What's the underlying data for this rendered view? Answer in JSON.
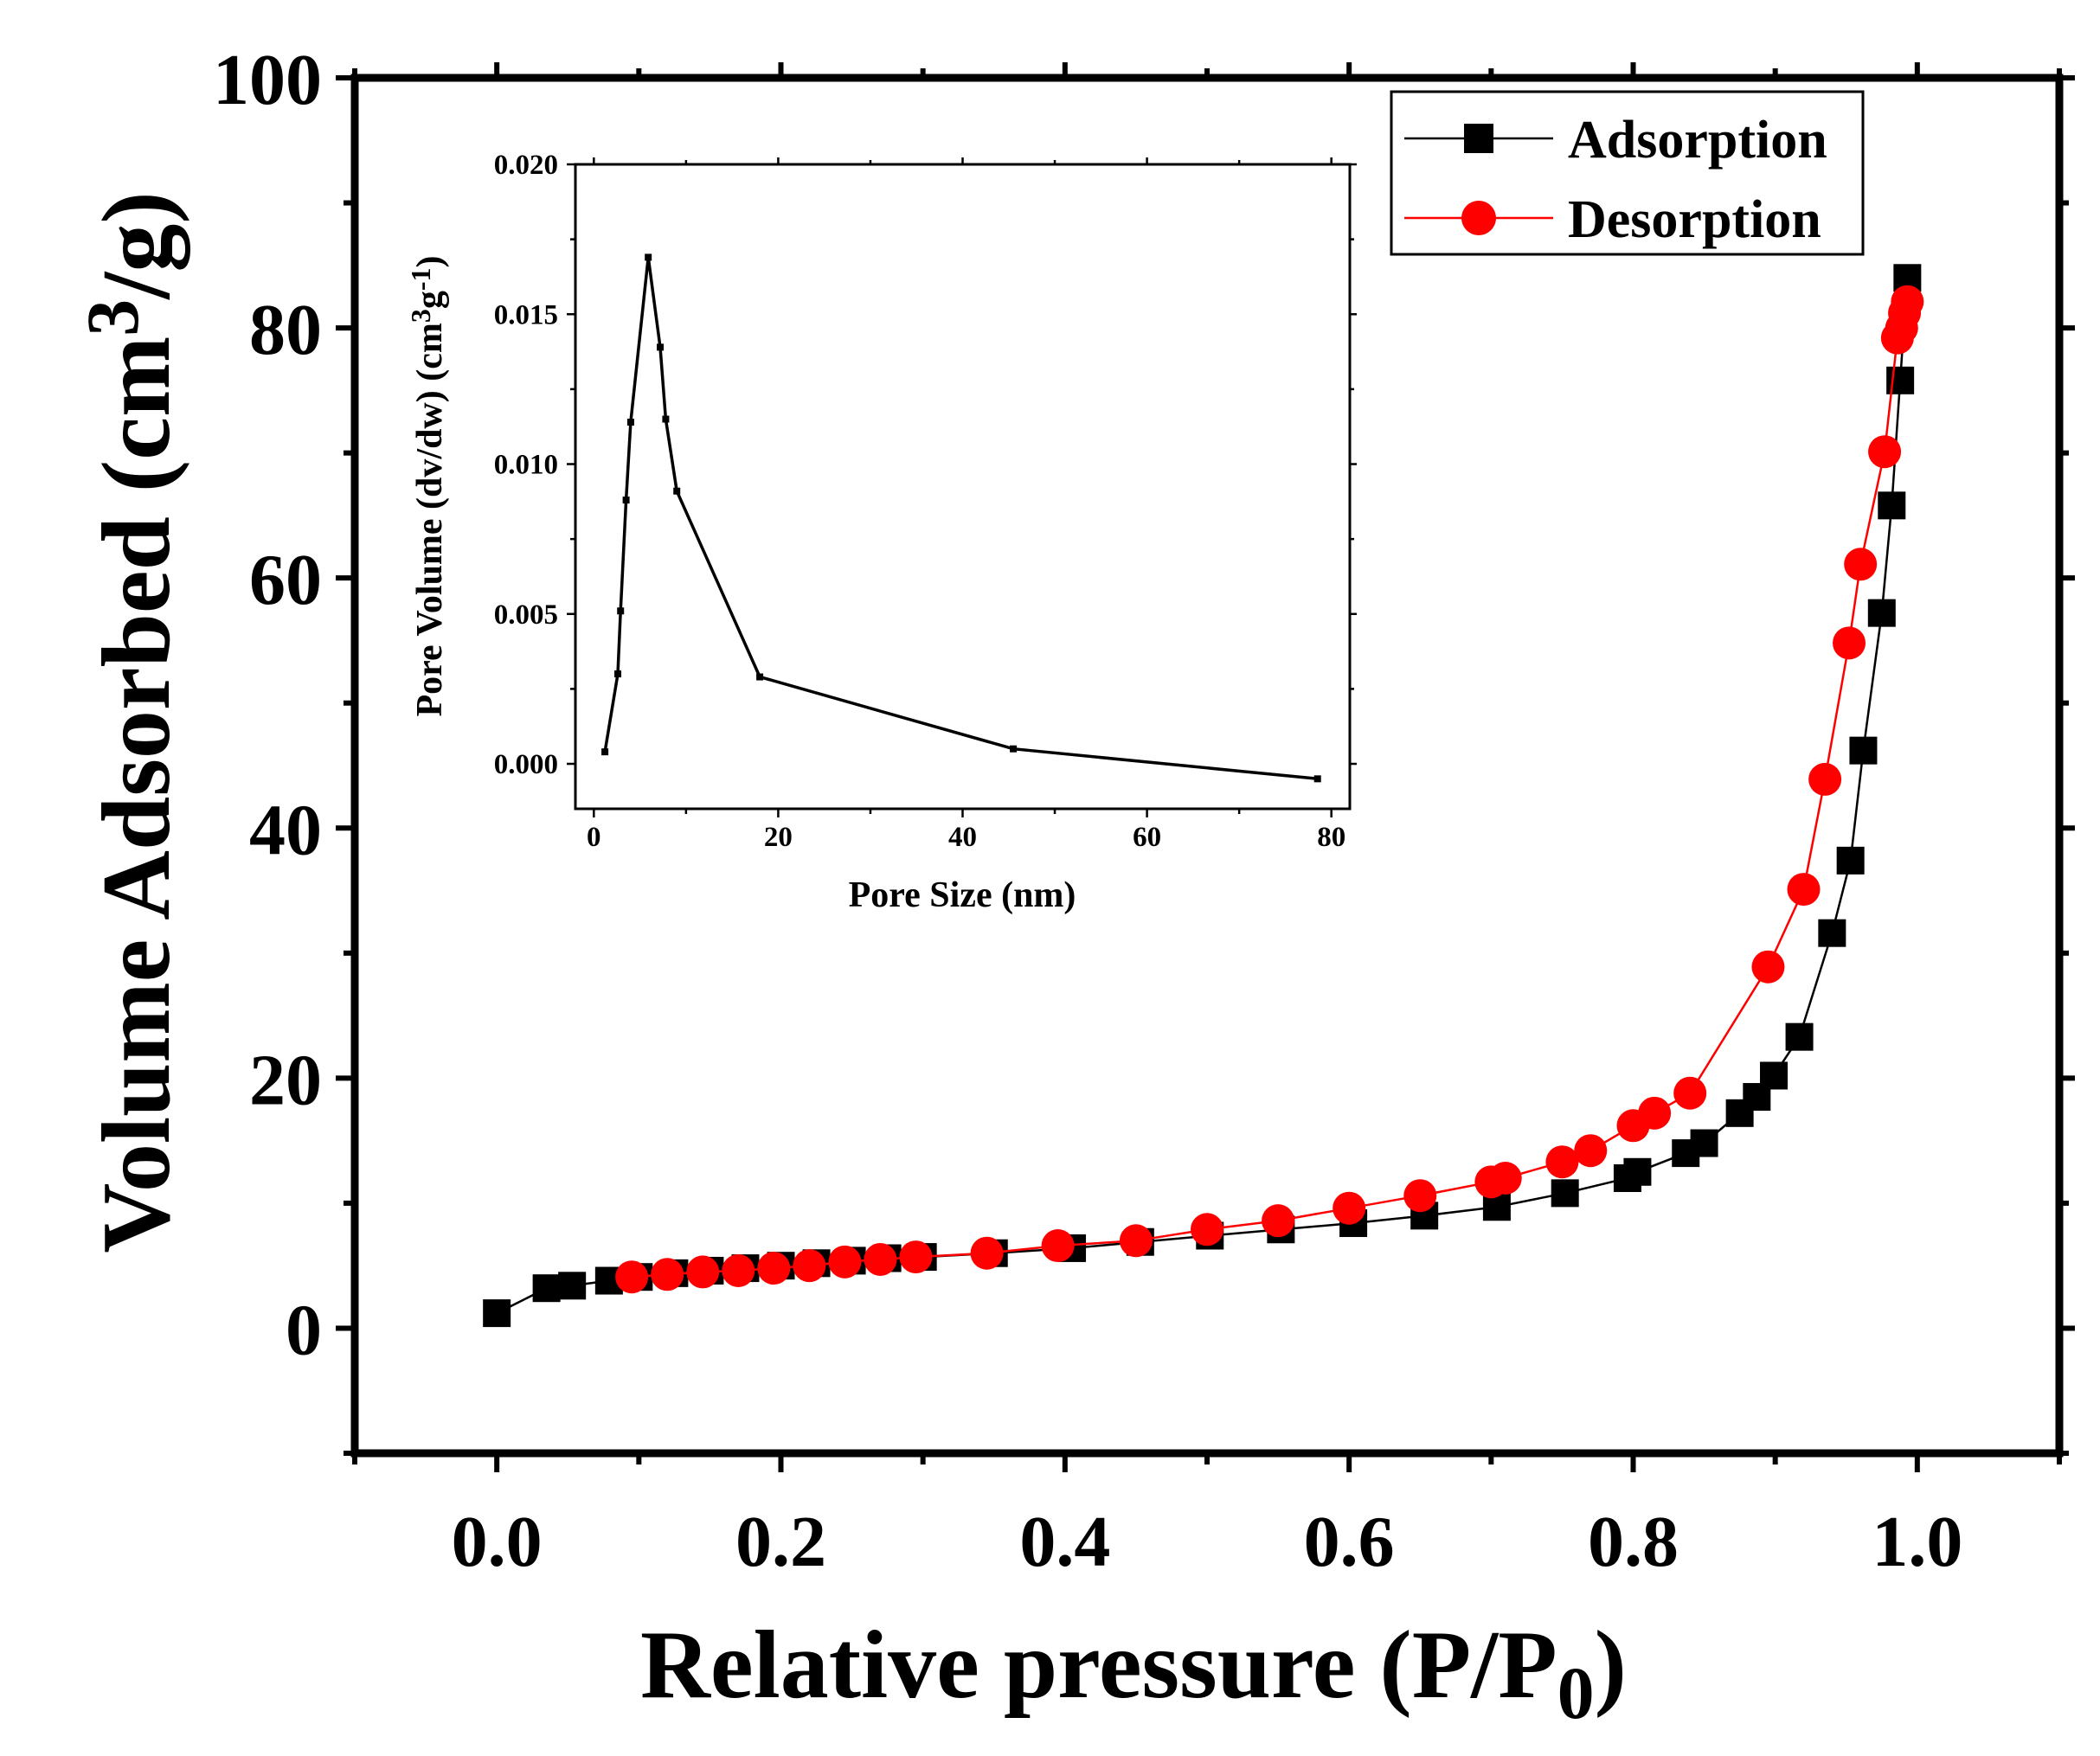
{
  "chart_data": [
    {
      "type": "scatter",
      "name": "main",
      "xlabel": "Relative pressure (P/P",
      "xlabel_sub": "0",
      "xlabel_end": ")",
      "ylabel": "Volume Adsorbed (cm",
      "ylabel_sup": "3",
      "ylabel_end": "/g)",
      "xlim": [
        -0.1,
        1.1
      ],
      "ylim": [
        -10,
        100
      ],
      "xticks": [
        0.0,
        0.2,
        0.4,
        0.6,
        0.8,
        1.0
      ],
      "xtick_labels": [
        "0.0",
        "0.2",
        "0.4",
        "0.6",
        "0.8",
        "1.0"
      ],
      "yticks": [
        0,
        20,
        40,
        60,
        80,
        100
      ],
      "ytick_labels": [
        "0",
        "20",
        "40",
        "60",
        "80",
        "100"
      ],
      "legend_position": "top-right",
      "series": [
        {
          "name": "Adsorption",
          "color": "#000000",
          "marker": "square",
          "x": [
            0.0,
            0.035,
            0.053,
            0.079,
            0.1,
            0.125,
            0.15,
            0.175,
            0.2,
            0.225,
            0.25,
            0.275,
            0.3,
            0.35,
            0.405,
            0.453,
            0.502,
            0.552,
            0.603,
            0.653,
            0.704,
            0.752,
            0.796,
            0.803,
            0.837,
            0.85,
            0.875,
            0.887,
            0.899,
            0.917,
            0.94,
            0.953,
            0.962,
            0.975,
            0.982,
            0.988,
            0.993
          ],
          "y": [
            1.2,
            3.2,
            3.4,
            3.8,
            4.1,
            4.4,
            4.6,
            4.8,
            5.0,
            5.2,
            5.4,
            5.6,
            5.7,
            6.0,
            6.4,
            6.9,
            7.4,
            7.9,
            8.4,
            9.0,
            9.7,
            10.8,
            12.0,
            12.5,
            14.0,
            14.8,
            17.2,
            18.5,
            20.2,
            23.3,
            31.6,
            37.4,
            46.2,
            57.2,
            65.8,
            75.8,
            84.0
          ],
          "values": [
            1.2,
            3.2,
            3.4,
            3.8,
            4.1,
            4.4,
            4.6,
            4.8,
            5.0,
            5.2,
            5.4,
            5.6,
            5.7,
            6.0,
            6.4,
            6.9,
            7.4,
            7.9,
            8.4,
            9.0,
            9.7,
            10.8,
            12.0,
            12.5,
            14.0,
            14.8,
            17.2,
            18.5,
            20.2,
            23.3,
            31.6,
            37.4,
            46.2,
            57.2,
            65.8,
            75.8,
            84.0
          ]
        },
        {
          "name": "Desorption",
          "color": "#ff0000",
          "marker": "circle",
          "x": [
            0.095,
            0.12,
            0.145,
            0.17,
            0.195,
            0.22,
            0.245,
            0.27,
            0.295,
            0.345,
            0.395,
            0.45,
            0.5,
            0.55,
            0.6,
            0.65,
            0.7,
            0.71,
            0.75,
            0.77,
            0.8,
            0.815,
            0.84,
            0.895,
            0.92,
            0.935,
            0.952,
            0.96,
            0.977,
            0.986,
            0.989,
            0.991,
            0.993
          ],
          "y": [
            4.1,
            4.3,
            4.5,
            4.6,
            4.8,
            5.0,
            5.3,
            5.5,
            5.7,
            6.0,
            6.6,
            7.0,
            7.9,
            8.6,
            9.6,
            10.6,
            11.7,
            12.0,
            13.3,
            14.2,
            16.2,
            17.2,
            18.8,
            28.9,
            35.1,
            43.9,
            54.8,
            61.1,
            70.1,
            79.2,
            80.0,
            81.2,
            82.1
          ],
          "values": [
            4.1,
            4.3,
            4.5,
            4.6,
            4.8,
            5.0,
            5.3,
            5.5,
            5.7,
            6.0,
            6.6,
            7.0,
            7.9,
            8.6,
            9.6,
            10.6,
            11.7,
            12.0,
            13.3,
            14.2,
            16.2,
            17.2,
            18.8,
            28.9,
            35.1,
            43.9,
            54.8,
            61.1,
            70.1,
            79.2,
            80.0,
            81.2,
            82.1
          ]
        }
      ]
    },
    {
      "type": "line",
      "name": "inset",
      "xlabel": "Pore Size (nm)",
      "ylabel": "Pore Volume (dv/dw) (cm",
      "ylabel_sup1": "3",
      "ylabel_mid": "g",
      "ylabel_sup2": "-1",
      "ylabel_end": ")",
      "xlim": [
        -2,
        82
      ],
      "ylim": [
        -0.0015,
        0.02
      ],
      "xticks": [
        0,
        20,
        40,
        60,
        80
      ],
      "xtick_labels": [
        "0",
        "20",
        "40",
        "60",
        "80"
      ],
      "yticks": [
        0.0,
        0.005,
        0.01,
        0.015,
        0.02
      ],
      "ytick_labels": [
        "0.000",
        "0.005",
        "0.010",
        "0.015",
        "0.020"
      ],
      "series": [
        {
          "name": "Pore Volume",
          "color": "#000000",
          "x": [
            1.2,
            2.6,
            2.9,
            3.5,
            4.0,
            5.9,
            7.2,
            7.8,
            9.0,
            18.0,
            45.5,
            78.5
          ],
          "y": [
            0.0004,
            0.003,
            0.0051,
            0.0088,
            0.0114,
            0.0169,
            0.0139,
            0.0115,
            0.0091,
            0.0029,
            0.0005,
            -0.0005
          ],
          "values": [
            0.0004,
            0.003,
            0.0051,
            0.0088,
            0.0114,
            0.0169,
            0.0139,
            0.0115,
            0.0091,
            0.0029,
            0.0005,
            -0.0005
          ]
        }
      ]
    }
  ]
}
